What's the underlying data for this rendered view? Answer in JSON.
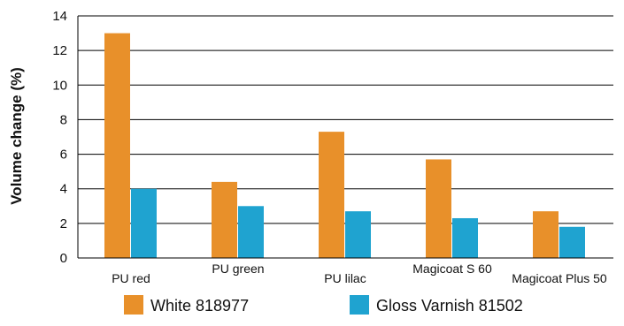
{
  "chart_data": {
    "type": "bar",
    "title": "",
    "xlabel": "",
    "ylabel": "Volume change (%)",
    "ylim": [
      0,
      14
    ],
    "yticks": [
      0,
      2,
      4,
      6,
      8,
      10,
      12,
      14
    ],
    "grid": true,
    "legend": "bottom",
    "categories": [
      "PU red",
      "PU green",
      "PU lilac",
      "Magicoat S 60",
      "Magicoat Plus 50"
    ],
    "series": [
      {
        "name": "White 818977",
        "color": "#e8902a",
        "values": [
          13.0,
          4.4,
          7.3,
          5.7,
          2.7
        ]
      },
      {
        "name": "Gloss Varnish 81502",
        "color": "#1fa3d0",
        "values": [
          4.0,
          3.0,
          2.7,
          2.3,
          1.8
        ]
      }
    ]
  }
}
